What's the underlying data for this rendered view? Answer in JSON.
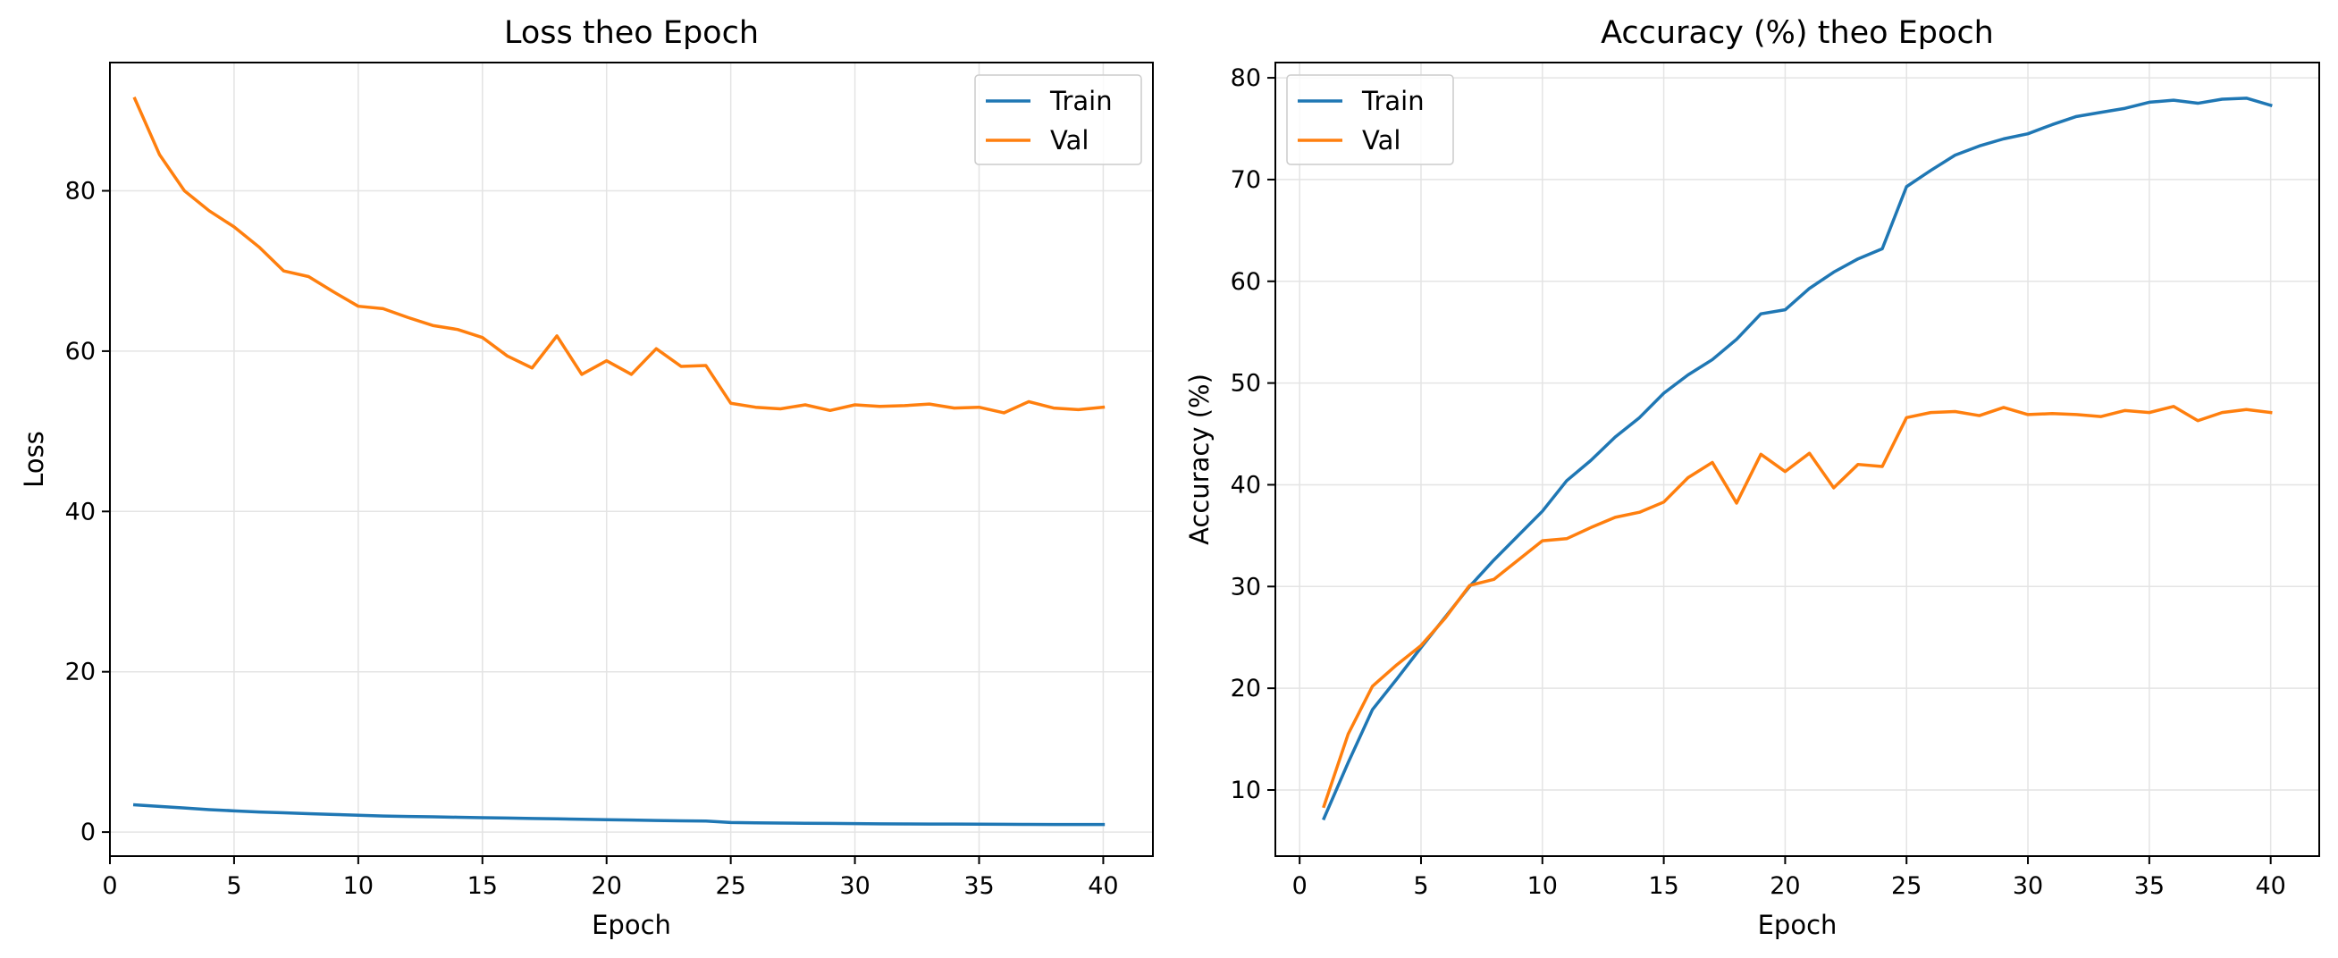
{
  "chart_data": [
    {
      "type": "line",
      "title": "Loss theo Epoch",
      "xlabel": "Epoch",
      "ylabel": "Loss",
      "xlim": [
        0,
        42
      ],
      "ylim": [
        -3,
        96
      ],
      "xticks": [
        0,
        5,
        10,
        15,
        20,
        25,
        30,
        35,
        40
      ],
      "yticks": [
        0,
        20,
        40,
        60,
        80
      ],
      "grid": true,
      "legend_position": "upper right",
      "x": [
        1,
        2,
        3,
        4,
        5,
        6,
        7,
        8,
        9,
        10,
        11,
        12,
        13,
        14,
        15,
        16,
        17,
        18,
        19,
        20,
        21,
        22,
        23,
        24,
        25,
        26,
        27,
        28,
        29,
        30,
        31,
        32,
        33,
        34,
        35,
        36,
        37,
        38,
        39,
        40
      ],
      "series": [
        {
          "name": "Train",
          "color": "#1f77b4",
          "values": [
            3.4,
            3.2,
            3.0,
            2.8,
            2.65,
            2.5,
            2.4,
            2.3,
            2.2,
            2.1,
            2.0,
            1.95,
            1.9,
            1.85,
            1.8,
            1.75,
            1.7,
            1.65,
            1.6,
            1.55,
            1.5,
            1.45,
            1.4,
            1.38,
            1.2,
            1.15,
            1.12,
            1.1,
            1.08,
            1.05,
            1.03,
            1.02,
            1.0,
            1.0,
            0.98,
            0.97,
            0.96,
            0.95,
            0.95,
            0.95
          ]
        },
        {
          "name": "Val",
          "color": "#ff7f0e",
          "values": [
            91.5,
            84.5,
            80.0,
            77.5,
            75.5,
            73.0,
            70.0,
            69.3,
            67.4,
            65.6,
            65.3,
            64.2,
            63.2,
            62.7,
            61.7,
            59.4,
            57.9,
            61.9,
            57.1,
            58.8,
            57.1,
            60.3,
            58.1,
            58.2,
            53.5,
            53.0,
            52.8,
            53.3,
            52.6,
            53.3,
            53.1,
            53.2,
            53.4,
            52.9,
            53.0,
            52.3,
            53.7,
            52.9,
            52.7,
            53.0
          ]
        }
      ]
    },
    {
      "type": "line",
      "title": "Accuracy (%) theo Epoch",
      "xlabel": "Epoch",
      "ylabel": "Accuracy (%)",
      "xlim": [
        -1,
        42
      ],
      "ylim": [
        3.5,
        81.5
      ],
      "xticks": [
        0,
        5,
        10,
        15,
        20,
        25,
        30,
        35,
        40
      ],
      "yticks": [
        10,
        20,
        30,
        40,
        50,
        60,
        70,
        80
      ],
      "grid": true,
      "legend_position": "upper left",
      "x": [
        1,
        2,
        3,
        4,
        5,
        6,
        7,
        8,
        9,
        10,
        11,
        12,
        13,
        14,
        15,
        16,
        17,
        18,
        19,
        20,
        21,
        22,
        23,
        24,
        25,
        26,
        27,
        28,
        29,
        30,
        31,
        32,
        33,
        34,
        35,
        36,
        37,
        38,
        39,
        40
      ],
      "series": [
        {
          "name": "Train",
          "color": "#1f77b4",
          "values": [
            7.2,
            12.7,
            17.9,
            20.9,
            24.0,
            27.0,
            30.0,
            32.6,
            35.0,
            37.4,
            40.4,
            42.4,
            44.7,
            46.6,
            49.0,
            50.8,
            52.3,
            54.3,
            56.8,
            57.2,
            59.3,
            60.9,
            62.2,
            63.2,
            69.3,
            70.9,
            72.4,
            73.3,
            74.0,
            74.5,
            75.4,
            76.2,
            76.6,
            77.0,
            77.6,
            77.8,
            77.5,
            77.9,
            78.0,
            77.3
          ]
        },
        {
          "name": "Val",
          "color": "#ff7f0e",
          "values": [
            8.4,
            15.5,
            20.2,
            22.3,
            24.2,
            26.9,
            30.1,
            30.7,
            32.6,
            34.5,
            34.7,
            35.8,
            36.8,
            37.3,
            38.3,
            40.7,
            42.2,
            38.2,
            43.0,
            41.3,
            43.1,
            39.7,
            42.0,
            41.8,
            46.6,
            47.1,
            47.2,
            46.8,
            47.6,
            46.9,
            47.0,
            46.9,
            46.7,
            47.3,
            47.1,
            47.7,
            46.3,
            47.1,
            47.4,
            47.1
          ]
        }
      ]
    }
  ]
}
